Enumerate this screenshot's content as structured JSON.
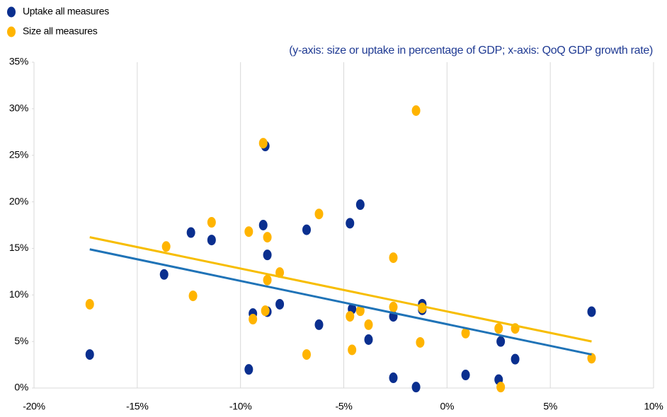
{
  "chart_data": {
    "type": "scatter",
    "subtitle": "(y-axis: size or uptake in percentage of GDP; x-axis: QoQ GDP growth rate)",
    "xlim": [
      -20,
      10
    ],
    "ylim": [
      0,
      35
    ],
    "xticks": [
      {
        "value": -20,
        "label": "-20%"
      },
      {
        "value": -15,
        "label": "-15%"
      },
      {
        "value": -10,
        "label": "-10%"
      },
      {
        "value": -5,
        "label": "-5%"
      },
      {
        "value": 0,
        "label": "0%"
      },
      {
        "value": 5,
        "label": "5%"
      },
      {
        "value": 10,
        "label": "10%"
      }
    ],
    "yticks": [
      {
        "value": 0,
        "label": "0%"
      },
      {
        "value": 5,
        "label": "5%"
      },
      {
        "value": 10,
        "label": "10%"
      },
      {
        "value": 15,
        "label": "15%"
      },
      {
        "value": 20,
        "label": "20%"
      },
      {
        "value": 25,
        "label": "25%"
      },
      {
        "value": 30,
        "label": "30%"
      },
      {
        "value": 35,
        "label": "35%"
      }
    ],
    "grid": true,
    "series": [
      {
        "name": "Uptake all measures",
        "color": "#0a2f8f",
        "trend_color": "#1f73b7",
        "x": [
          -17.3,
          -13.7,
          -12.4,
          -11.4,
          -9.6,
          -9.4,
          -8.9,
          -8.8,
          -8.7,
          -8.7,
          -8.1,
          -6.8,
          -6.2,
          -4.7,
          -4.6,
          -4.2,
          -3.8,
          -2.6,
          -2.6,
          -1.5,
          -1.2,
          -1.2,
          0.9,
          2.5,
          2.6,
          3.3,
          7.0
        ],
        "values": [
          3.6,
          12.2,
          16.7,
          15.9,
          2.0,
          8.0,
          17.5,
          26.0,
          14.3,
          8.2,
          9.0,
          17.0,
          6.8,
          17.7,
          8.5,
          19.7,
          5.2,
          7.7,
          1.1,
          0.1,
          9.0,
          8.4,
          1.4,
          0.9,
          5.0,
          3.1,
          8.2
        ],
        "trend_x": [
          -17.3,
          7.0
        ],
        "trend_y": [
          14.9,
          3.6
        ]
      },
      {
        "name": "Size all measures",
        "color": "#ffb400",
        "trend_color": "#f7bd00",
        "x": [
          -17.3,
          -13.6,
          -12.3,
          -11.4,
          -9.6,
          -9.4,
          -8.9,
          -8.8,
          -8.7,
          -8.7,
          -8.1,
          -6.8,
          -6.2,
          -4.7,
          -4.6,
          -4.2,
          -3.8,
          -2.6,
          -2.6,
          -1.5,
          -1.3,
          -1.2,
          0.9,
          2.5,
          2.6,
          3.3,
          7.0
        ],
        "values": [
          9.0,
          15.2,
          9.9,
          17.8,
          16.8,
          7.4,
          26.3,
          8.3,
          16.2,
          11.6,
          12.4,
          3.6,
          18.7,
          7.7,
          4.1,
          8.3,
          6.8,
          14.0,
          8.7,
          29.8,
          4.9,
          8.6,
          5.9,
          6.4,
          0.1,
          6.4,
          3.2
        ],
        "trend_x": [
          -17.3,
          7.0
        ],
        "trend_y": [
          16.2,
          5.0
        ]
      }
    ]
  }
}
